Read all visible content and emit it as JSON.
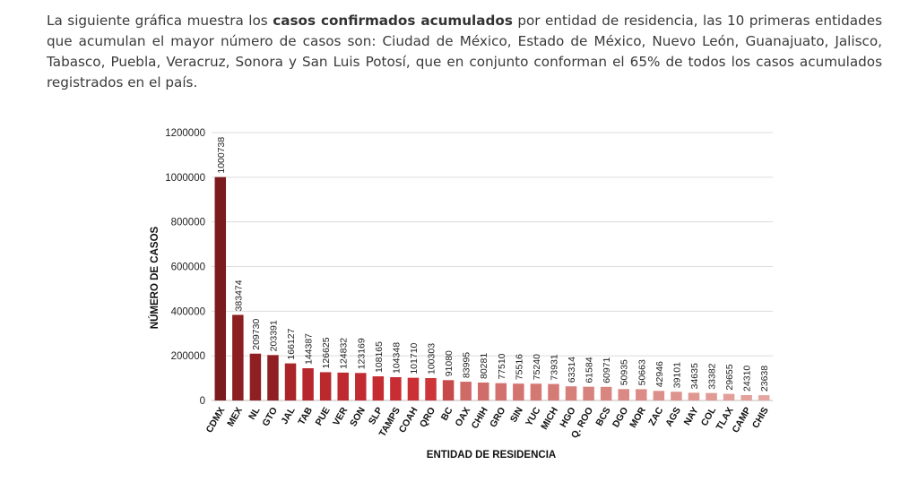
{
  "intro": {
    "before": "La siguiente gráfica muestra los ",
    "bold": "casos confirmados acumulados",
    "after": " por entidad de residencia, las 10 primeras entidades que acumulan el mayor número de casos son: Ciudad de México, Estado de México, Nuevo León, Guanajuato, Jalisco, Tabasco, Puebla, Veracruz, Sonora y San Luis Potosí, que en conjunto conforman el 65% de todos los casos acumulados registrados en el país."
  },
  "chart_data": {
    "type": "bar",
    "title": "",
    "xlabel": "ENTIDAD DE RESIDENCIA",
    "ylabel": "NÚMERO DE CASOS",
    "ylim": [
      0,
      1200000
    ],
    "yticks": [
      0,
      200000,
      400000,
      600000,
      800000,
      1000000,
      1200000
    ],
    "grid": true,
    "legend": "none",
    "categories": [
      "CDMX",
      "MEX",
      "NL",
      "GTO",
      "JAL",
      "TAB",
      "PUE",
      "VER",
      "SON",
      "SLP",
      "TAMPS",
      "COAH",
      "QRO",
      "BC",
      "OAX",
      "CHIH",
      "GRO",
      "SIN",
      "YUC",
      "MICH",
      "HGO",
      "Q. ROO",
      "BCS",
      "DGO",
      "MOR",
      "ZAC",
      "AGS",
      "NAY",
      "COL",
      "TLAX",
      "CAMP",
      "CHIS"
    ],
    "values": [
      1000738,
      383474,
      209730,
      203391,
      166127,
      144387,
      126625,
      124832,
      123169,
      108165,
      104348,
      101710,
      100303,
      91080,
      83995,
      80281,
      77510,
      75516,
      75240,
      73931,
      63314,
      61584,
      60971,
      50935,
      50663,
      42946,
      39101,
      34635,
      33382,
      29655,
      24310,
      23638
    ],
    "colors": [
      "#7a1c1e",
      "#8b1f22",
      "#8f1f23",
      "#8f1f23",
      "#a9252a",
      "#b6282d",
      "#ba292e",
      "#be2a30",
      "#c22b31",
      "#c52c32",
      "#c82d33",
      "#cb3035",
      "#cd3538",
      "#c64a4a",
      "#cf6a66",
      "#d06d69",
      "#d2716d",
      "#d37470",
      "#d47873",
      "#d57b76",
      "#d77f7a",
      "#d8827d",
      "#d98580",
      "#da8984",
      "#dc8c87",
      "#dd908b",
      "#de938e",
      "#e09792",
      "#e19a95",
      "#e29e99",
      "#e4a29d",
      "#e5a6a1"
    ]
  }
}
